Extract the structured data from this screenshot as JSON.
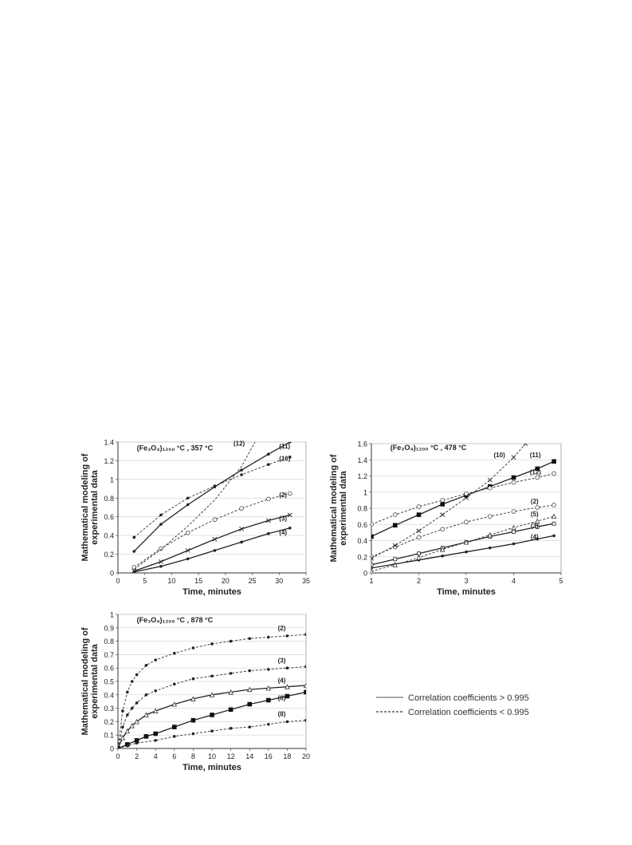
{
  "panels": [
    {
      "title": "(Fe₃O₄)₁₂₀₀ °C , 357 °C",
      "xlabel": "Time, minutes",
      "ylabel_line1": "Mathematical modeling of",
      "ylabel_line2": "experimental data"
    },
    {
      "title": "(Fe₃O₄)₁₂₀₀ °C , 478 °C",
      "xlabel": "Time, minutes",
      "ylabel_line1": "Mathematical modeling of",
      "ylabel_line2": "experimental data"
    },
    {
      "title": "(Fe₃O₄)₁₂₀₀ °C , 878 °C",
      "xlabel": "Time, minutes",
      "ylabel_line1": "Mathematical modeling of",
      "ylabel_line2": "experimental data"
    }
  ],
  "legend": {
    "solid": "Correlation coefficients > 0.995",
    "dashed": "Correlation coefficients < 0.995"
  },
  "chart_data": [
    {
      "type": "line",
      "title": "(Fe₃O₄)₁₂₀₀ °C , 357 °C",
      "xlabel": "Time, minutes",
      "ylabel": "Mathematical modeling of experimental data",
      "xlim": [
        0,
        35
      ],
      "ylim": [
        0,
        1.4
      ],
      "xticks": [
        0,
        5,
        10,
        15,
        20,
        25,
        30,
        35
      ],
      "yticks": [
        0,
        0.2,
        0.4,
        0.6,
        0.8,
        1,
        1.2,
        1.4
      ],
      "grid": true,
      "series": [
        {
          "name": "(2)",
          "style": "dashed",
          "marker": "circle",
          "x": [
            3,
            8,
            13,
            18,
            23,
            28,
            32
          ],
          "y": [
            0.06,
            0.26,
            0.43,
            0.57,
            0.69,
            0.79,
            0.85
          ]
        },
        {
          "name": "(3)",
          "style": "solid",
          "marker": "cross",
          "x": [
            3,
            8,
            13,
            18,
            23,
            28,
            32
          ],
          "y": [
            0.02,
            0.12,
            0.24,
            0.36,
            0.47,
            0.56,
            0.62
          ]
        },
        {
          "name": "(4)",
          "style": "solid",
          "marker": "dot",
          "x": [
            3,
            8,
            13,
            18,
            23,
            28,
            32
          ],
          "y": [
            0.01,
            0.07,
            0.15,
            0.24,
            0.33,
            0.42,
            0.48
          ]
        },
        {
          "name": "(10)",
          "style": "dashed",
          "marker": "dot",
          "x": [
            3,
            8,
            13,
            18,
            23,
            28,
            32
          ],
          "y": [
            0.38,
            0.62,
            0.8,
            0.93,
            1.05,
            1.16,
            1.24
          ]
        },
        {
          "name": "(11)",
          "style": "solid",
          "marker": "dot",
          "x": [
            3,
            8,
            13,
            18,
            23,
            28,
            32
          ],
          "y": [
            0.23,
            0.52,
            0.73,
            0.92,
            1.1,
            1.27,
            1.4
          ]
        },
        {
          "name": "(12)",
          "style": "dashed",
          "marker": "none",
          "x": [
            3,
            8,
            13,
            18,
            23,
            25.5
          ],
          "y": [
            0.04,
            0.25,
            0.5,
            0.78,
            1.14,
            1.4
          ]
        }
      ],
      "annotations": [
        "(12)",
        "(11)",
        "(10)",
        "(2)",
        "(3)",
        "(4)"
      ]
    },
    {
      "type": "line",
      "title": "(Fe₃O₄)₁₂₀₀ °C , 478 °C",
      "xlabel": "Time, minutes",
      "ylabel": "Mathematical modeling of experimental data",
      "xlim": [
        1,
        5
      ],
      "ylim": [
        0,
        1.6
      ],
      "xticks": [
        1,
        2,
        3,
        4,
        5
      ],
      "yticks": [
        0,
        0.2,
        0.4,
        0.6,
        0.8,
        1,
        1.2,
        1.4,
        1.6
      ],
      "grid": true,
      "series": [
        {
          "name": "(2)",
          "style": "dashed",
          "marker": "circle",
          "x": [
            1,
            1.5,
            2,
            2.5,
            3,
            3.5,
            4,
            4.5,
            4.85
          ],
          "y": [
            0.2,
            0.32,
            0.44,
            0.54,
            0.63,
            0.7,
            0.76,
            0.81,
            0.84
          ]
        },
        {
          "name": "(3)",
          "style": "solid",
          "marker": "square",
          "x": [
            1,
            1.5,
            2,
            2.5,
            3,
            3.5,
            4,
            4.5,
            4.85
          ],
          "y": [
            0.1,
            0.17,
            0.24,
            0.31,
            0.38,
            0.45,
            0.51,
            0.57,
            0.61
          ]
        },
        {
          "name": "(4)",
          "style": "solid",
          "marker": "dot",
          "x": [
            1,
            1.5,
            2,
            2.5,
            3,
            3.5,
            4,
            4.5,
            4.85
          ],
          "y": [
            0.06,
            0.11,
            0.16,
            0.21,
            0.26,
            0.31,
            0.36,
            0.42,
            0.46
          ]
        },
        {
          "name": "(5)",
          "style": "dashed",
          "marker": "triangle",
          "x": [
            1,
            1.5,
            2,
            2.5,
            3,
            3.5,
            4,
            4.5,
            4.85
          ],
          "y": [
            0.02,
            0.1,
            0.19,
            0.29,
            0.38,
            0.47,
            0.56,
            0.64,
            0.7
          ]
        },
        {
          "name": "(10)",
          "style": "dashed",
          "marker": "x",
          "x": [
            1,
            1.5,
            2,
            2.5,
            3,
            3.5,
            4,
            4.25
          ],
          "y": [
            0.18,
            0.34,
            0.52,
            0.72,
            0.93,
            1.15,
            1.43,
            1.6
          ]
        },
        {
          "name": "(11)",
          "style": "solid",
          "marker": "square-filled",
          "x": [
            1,
            1.5,
            2,
            2.5,
            3,
            3.5,
            4,
            4.5,
            4.85
          ],
          "y": [
            0.45,
            0.59,
            0.72,
            0.85,
            0.96,
            1.07,
            1.18,
            1.29,
            1.38
          ]
        },
        {
          "name": "(12)",
          "style": "dashed",
          "marker": "circle",
          "x": [
            1,
            1.5,
            2,
            2.5,
            3,
            3.5,
            4,
            4.5,
            4.85
          ],
          "y": [
            0.6,
            0.72,
            0.82,
            0.9,
            0.98,
            1.05,
            1.12,
            1.18,
            1.23
          ]
        }
      ],
      "annotations": [
        "(10)",
        "(11)",
        "(12)",
        "(2)",
        "(5)",
        "(3)",
        "(4)"
      ]
    },
    {
      "type": "line",
      "title": "(Fe₃O₄)₁₂₀₀ °C , 878 °C",
      "xlabel": "Time, minutes",
      "ylabel": "Mathematical modeling of experimental data",
      "xlim": [
        0,
        20
      ],
      "ylim": [
        0,
        1
      ],
      "xticks": [
        0,
        2,
        4,
        6,
        8,
        10,
        12,
        14,
        16,
        18,
        20
      ],
      "yticks": [
        0,
        0.1,
        0.2,
        0.3,
        0.4,
        0.5,
        0.6,
        0.7,
        0.8,
        0.9,
        1
      ],
      "grid": true,
      "series": [
        {
          "name": "(2)",
          "style": "dashed",
          "marker": "dot",
          "x": [
            0,
            0.5,
            1,
            1.5,
            2,
            3,
            4,
            6,
            8,
            10,
            12,
            14,
            16,
            18,
            20
          ],
          "y": [
            0,
            0.28,
            0.42,
            0.5,
            0.55,
            0.62,
            0.66,
            0.71,
            0.75,
            0.78,
            0.8,
            0.82,
            0.83,
            0.84,
            0.85
          ]
        },
        {
          "name": "(3)",
          "style": "dashed",
          "marker": "dot",
          "x": [
            0,
            0.5,
            1,
            1.5,
            2,
            3,
            4,
            6,
            8,
            10,
            12,
            14,
            16,
            18,
            20
          ],
          "y": [
            0,
            0.16,
            0.25,
            0.3,
            0.34,
            0.4,
            0.43,
            0.48,
            0.52,
            0.54,
            0.56,
            0.58,
            0.59,
            0.6,
            0.61
          ]
        },
        {
          "name": "(4)",
          "style": "solid",
          "marker": "triangle",
          "x": [
            0,
            0.5,
            1,
            1.5,
            2,
            3,
            4,
            6,
            8,
            10,
            12,
            14,
            16,
            18,
            20
          ],
          "y": [
            0,
            0.08,
            0.13,
            0.17,
            0.2,
            0.25,
            0.28,
            0.33,
            0.37,
            0.4,
            0.42,
            0.44,
            0.45,
            0.46,
            0.47
          ]
        },
        {
          "name": "(6)",
          "style": "solid",
          "marker": "square-filled",
          "x": [
            0,
            1,
            2,
            3,
            4,
            6,
            8,
            10,
            12,
            14,
            16,
            18,
            20
          ],
          "y": [
            0,
            0.03,
            0.06,
            0.09,
            0.11,
            0.16,
            0.21,
            0.25,
            0.29,
            0.33,
            0.36,
            0.39,
            0.42
          ]
        },
        {
          "name": "(8)",
          "style": "dashed",
          "marker": "dot",
          "x": [
            0,
            1,
            2,
            4,
            6,
            8,
            10,
            12,
            14,
            16,
            18,
            20
          ],
          "y": [
            0,
            0.02,
            0.04,
            0.06,
            0.09,
            0.11,
            0.13,
            0.15,
            0.16,
            0.18,
            0.2,
            0.21
          ]
        }
      ],
      "annotations": [
        "(2)",
        "(3)",
        "(4)",
        "(6)",
        "(8)"
      ]
    }
  ]
}
